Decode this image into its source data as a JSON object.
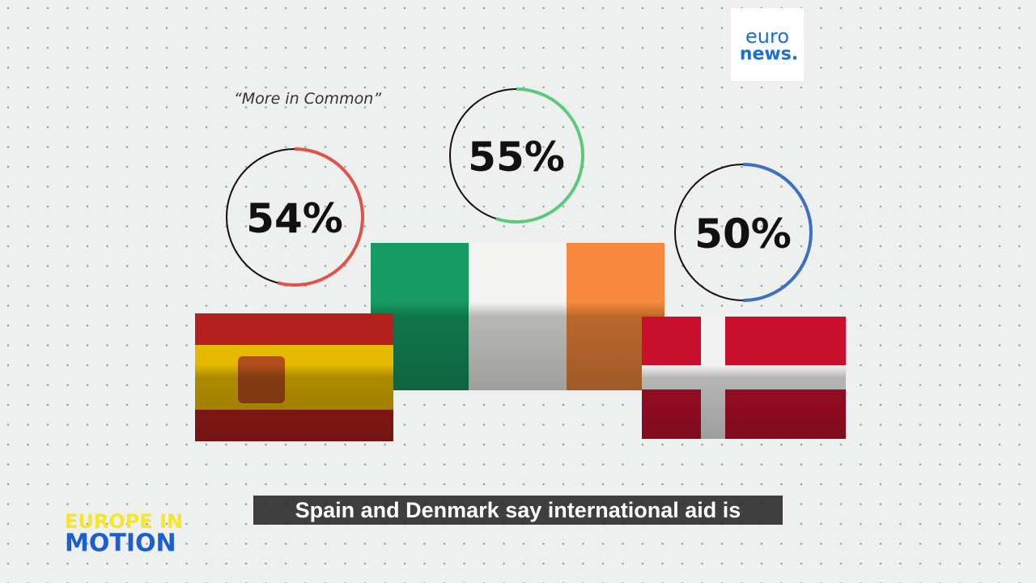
{
  "logo": {
    "line1": "euro",
    "line2": "news."
  },
  "show": {
    "line1": "EUROPE IN",
    "line2": "MOTION"
  },
  "caption": "Spain and Denmark say international aid is",
  "chart_data": {
    "type": "ring",
    "subtitle": "“More in Common”",
    "values": [
      54,
      55,
      50
    ],
    "value_labels": [
      "54%",
      "55%",
      "50%"
    ],
    "colors": [
      "#e0534a",
      "#5cc97a",
      "#3f6fc2"
    ]
  }
}
